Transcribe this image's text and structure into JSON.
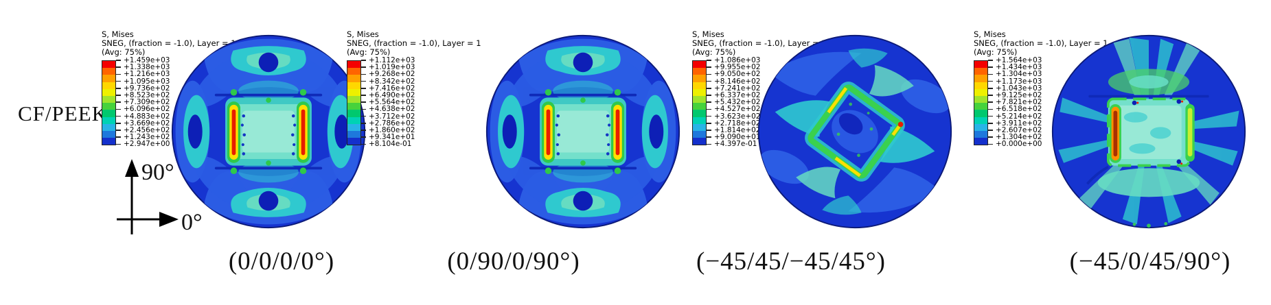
{
  "material_label": "CF/PEEK",
  "axis_indicator": {
    "up_label": "90°",
    "right_label": "0°"
  },
  "legend_band_colors": [
    "#f40000",
    "#ff6400",
    "#ffa000",
    "#ffd700",
    "#eef000",
    "#a0e42c",
    "#46d23c",
    "#00c86e",
    "#00d2b4",
    "#28b4e6",
    "#1e78dc",
    "#1430cc"
  ],
  "contour_field_colors": {
    "base_blue": "#1634d0",
    "light_blue": "#2b5ce4",
    "cyan": "#2fc9cf",
    "aqua": "#66dcc2",
    "dark_blue_spot": "#0d1fb6",
    "green": "#2fc94a",
    "yellow": "#ffe000",
    "red": "#e81e00"
  },
  "panels": [
    {
      "caption": "(0/0/0/0°)",
      "legend": {
        "title": "S, Mises",
        "subtitle": "SNEG, (fraction = -1.0), Layer = 1",
        "averaging": "(Avg: 75%)",
        "values": [
          "+1.459e+03",
          "+1.338e+03",
          "+1.216e+03",
          "+1.095e+03",
          "+9.736e+02",
          "+8.523e+02",
          "+7.309e+02",
          "+6.096e+02",
          "+4.883e+02",
          "+3.669e+02",
          "+2.456e+02",
          "+1.243e+02",
          "+2.947e+00"
        ]
      }
    },
    {
      "caption": "(0/90/0/90°)",
      "legend": {
        "title": "S, Mises",
        "subtitle": "SNEG, (fraction = -1.0), Layer = 1",
        "averaging": "(Avg: 75%)",
        "values": [
          "+1.112e+03",
          "+1.019e+03",
          "+9.268e+02",
          "+8.342e+02",
          "+7.416e+02",
          "+6.490e+02",
          "+5.564e+02",
          "+4.638e+02",
          "+3.712e+02",
          "+2.786e+02",
          "+1.860e+02",
          "+9.341e+01",
          "+8.104e-01"
        ]
      }
    },
    {
      "caption": "(−45/45/−45/45°)",
      "legend": {
        "title": "S, Mises",
        "subtitle": "SNEG, (fraction = -1.0), Layer = 1",
        "averaging": "(Avg: 75%)",
        "values": [
          "+1.086e+03",
          "+9.955e+02",
          "+9.050e+02",
          "+8.146e+02",
          "+7.241e+02",
          "+6.337e+02",
          "+5.432e+02",
          "+4.527e+02",
          "+3.623e+02",
          "+2.718e+02",
          "+1.814e+02",
          "+9.090e+01",
          "+4.397e-01"
        ]
      }
    },
    {
      "caption": "(−45/0/45/90°)",
      "legend": {
        "title": "S, Mises",
        "subtitle": "SNEG, (fraction = -1.0), Layer = 1",
        "averaging": "(Avg: 75%)",
        "values": [
          "+1.564e+03",
          "+1.434e+03",
          "+1.304e+03",
          "+1.173e+03",
          "+1.043e+03",
          "+9.125e+02",
          "+7.821e+02",
          "+6.518e+02",
          "+5.214e+02",
          "+3.911e+02",
          "+2.607e+02",
          "+1.304e+02",
          "+0.000e+00"
        ]
      }
    }
  ]
}
